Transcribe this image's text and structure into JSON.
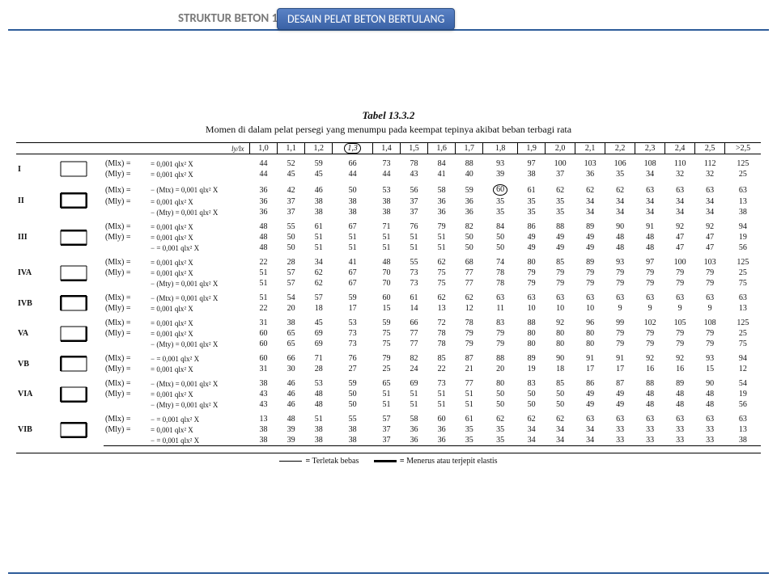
{
  "header": {
    "brand": "STRUKTUR BETON 1",
    "ribbon": "DESAIN PELAT BETON BERTULANG"
  },
  "table": {
    "title": "Tabel 13.3.2",
    "subtitle": "Momen di dalam pelat persegi yang menumpu pada keempat tepinya akibat beban terbagi rata",
    "corner": "ly/lx",
    "ratios": [
      "1,0",
      "1,1",
      "1,2",
      "1,3",
      "1,4",
      "1,5",
      "1,6",
      "1,7",
      "1,8",
      "1,9",
      "2,0",
      "2,1",
      "2,2",
      "2,3",
      "2,4",
      "2,5",
      ">2,5"
    ],
    "highlight_col": 3,
    "formula": "0,001 qlx² X",
    "cases": [
      {
        "id": "I",
        "diag": "I",
        "rows": [
          {
            "m": "(Mlx)",
            "v": [
              "44",
              "52",
              "59",
              "66",
              "73",
              "78",
              "84",
              "88",
              "93",
              "97",
              "100",
              "103",
              "106",
              "108",
              "110",
              "112",
              "125"
            ]
          },
          {
            "m": "(Mly)",
            "v": [
              "44",
              "45",
              "45",
              "44",
              "44",
              "43",
              "41",
              "40",
              "39",
              "38",
              "37",
              "36",
              "35",
              "34",
              "32",
              "32",
              "25"
            ]
          }
        ]
      },
      {
        "id": "II",
        "diag": "II",
        "rows": [
          {
            "m": "(Mlx)",
            "pre": "−  (Mtx)",
            "v": [
              "36",
              "42",
              "46",
              "50",
              "53",
              "56",
              "58",
              "59",
              "60",
              "61",
              "62",
              "62",
              "62",
              "63",
              "63",
              "63",
              "63"
            ],
            "circ": 8
          },
          {
            "m": "(Mly)",
            "v": [
              "36",
              "37",
              "38",
              "38",
              "38",
              "37",
              "36",
              "36",
              "35",
              "35",
              "35",
              "34",
              "34",
              "34",
              "34",
              "34",
              "13"
            ]
          },
          {
            "m": "",
            "pre": "−  (Mty)",
            "v": [
              "36",
              "37",
              "38",
              "38",
              "38",
              "37",
              "36",
              "36",
              "35",
              "35",
              "35",
              "34",
              "34",
              "34",
              "34",
              "34",
              "38"
            ]
          }
        ]
      },
      {
        "id": "III",
        "diag": "III",
        "rows": [
          {
            "m": "(Mlx)",
            "pre": "",
            "v": [
              "48",
              "55",
              "61",
              "67",
              "71",
              "76",
              "79",
              "82",
              "84",
              "86",
              "88",
              "89",
              "90",
              "91",
              "92",
              "92",
              "94"
            ]
          },
          {
            "m": "(Mly)",
            "v": [
              "48",
              "50",
              "51",
              "51",
              "51",
              "51",
              "51",
              "50",
              "50",
              "49",
              "49",
              "49",
              "48",
              "48",
              "47",
              "47",
              "19"
            ]
          },
          {
            "m": "",
            "pre": "−",
            "v": [
              "48",
              "50",
              "51",
              "51",
              "51",
              "51",
              "51",
              "50",
              "50",
              "49",
              "49",
              "49",
              "48",
              "48",
              "47",
              "47",
              "56"
            ]
          }
        ]
      },
      {
        "id": "IVA",
        "diag": "IVA",
        "rows": [
          {
            "m": "(Mlx)",
            "v": [
              "22",
              "28",
              "34",
              "41",
              "48",
              "55",
              "62",
              "68",
              "74",
              "80",
              "85",
              "89",
              "93",
              "97",
              "100",
              "103",
              "125"
            ]
          },
          {
            "m": "(Mly)",
            "v": [
              "51",
              "57",
              "62",
              "67",
              "70",
              "73",
              "75",
              "77",
              "78",
              "79",
              "79",
              "79",
              "79",
              "79",
              "79",
              "79",
              "25"
            ]
          },
          {
            "m": "",
            "pre": "−  (Mty)",
            "v": [
              "51",
              "57",
              "62",
              "67",
              "70",
              "73",
              "75",
              "77",
              "78",
              "79",
              "79",
              "79",
              "79",
              "79",
              "79",
              "79",
              "75"
            ]
          }
        ]
      },
      {
        "id": "IVB",
        "diag": "IVB",
        "rows": [
          {
            "m": "(Mlx)",
            "pre": "−  (Mtx)",
            "v": [
              "51",
              "54",
              "57",
              "59",
              "60",
              "61",
              "62",
              "62",
              "63",
              "63",
              "63",
              "63",
              "63",
              "63",
              "63",
              "63",
              "63"
            ]
          },
          {
            "m": "(Mly)",
            "v": [
              "22",
              "20",
              "18",
              "17",
              "15",
              "14",
              "13",
              "12",
              "11",
              "10",
              "10",
              "10",
              "9",
              "9",
              "9",
              "9",
              "13"
            ]
          }
        ]
      },
      {
        "id": "VA",
        "diag": "VA",
        "rows": [
          {
            "m": "(Mlx)",
            "v": [
              "31",
              "38",
              "45",
              "53",
              "59",
              "66",
              "72",
              "78",
              "83",
              "88",
              "92",
              "96",
              "99",
              "102",
              "105",
              "108",
              "125"
            ]
          },
          {
            "m": "(Mly)",
            "v": [
              "60",
              "65",
              "69",
              "73",
              "75",
              "77",
              "78",
              "79",
              "79",
              "80",
              "80",
              "80",
              "79",
              "79",
              "79",
              "79",
              "25"
            ]
          },
          {
            "m": "",
            "pre": "−  (Mty)",
            "v": [
              "60",
              "65",
              "69",
              "73",
              "75",
              "77",
              "78",
              "79",
              "79",
              "80",
              "80",
              "80",
              "79",
              "79",
              "79",
              "79",
              "75"
            ]
          }
        ]
      },
      {
        "id": "VB",
        "diag": "VB",
        "rows": [
          {
            "m": "(Mlx)",
            "pre": "−",
            "v": [
              "60",
              "66",
              "71",
              "76",
              "79",
              "82",
              "85",
              "87",
              "88",
              "89",
              "90",
              "91",
              "91",
              "92",
              "92",
              "93",
              "94"
            ]
          },
          {
            "m": "(Mly)",
            "v": [
              "31",
              "30",
              "28",
              "27",
              "25",
              "24",
              "22",
              "21",
              "20",
              "19",
              "18",
              "17",
              "17",
              "16",
              "16",
              "15",
              "12"
            ]
          }
        ]
      },
      {
        "id": "VIA",
        "diag": "VIA",
        "rows": [
          {
            "m": "(Mlx)",
            "pre": "−  (Mtx)",
            "v": [
              "38",
              "46",
              "53",
              "59",
              "65",
              "69",
              "73",
              "77",
              "80",
              "83",
              "85",
              "86",
              "87",
              "88",
              "89",
              "90",
              "54"
            ]
          },
          {
            "m": "(Mly)",
            "v": [
              "43",
              "46",
              "48",
              "50",
              "51",
              "51",
              "51",
              "51",
              "50",
              "50",
              "50",
              "49",
              "49",
              "48",
              "48",
              "48",
              "19"
            ]
          },
          {
            "m": "",
            "pre": "−  (Mty)",
            "v": [
              "43",
              "46",
              "48",
              "50",
              "51",
              "51",
              "51",
              "51",
              "50",
              "50",
              "50",
              "49",
              "49",
              "48",
              "48",
              "48",
              "56"
            ]
          }
        ]
      },
      {
        "id": "VIB",
        "diag": "VIB",
        "rows": [
          {
            "m": "(Mlx)",
            "pre": "−",
            "v": [
              "13",
              "48",
              "51",
              "55",
              "57",
              "58",
              "60",
              "61",
              "62",
              "62",
              "62",
              "63",
              "63",
              "63",
              "63",
              "63",
              "63"
            ]
          },
          {
            "m": "(Mly)",
            "v": [
              "38",
              "39",
              "38",
              "38",
              "37",
              "36",
              "36",
              "35",
              "35",
              "34",
              "34",
              "34",
              "33",
              "33",
              "33",
              "33",
              "13"
            ]
          },
          {
            "m": "",
            "pre": "−",
            "v": [
              "38",
              "39",
              "38",
              "38",
              "37",
              "36",
              "36",
              "35",
              "35",
              "34",
              "34",
              "34",
              "33",
              "33",
              "33",
              "33",
              "38"
            ]
          }
        ]
      }
    ],
    "legend": {
      "a": "Terletak bebas",
      "b": "Menerus atau terjepit elastis"
    }
  },
  "colors": {
    "accent": "#2e5c9a",
    "ribbon_top": "#5a82c5",
    "ribbon_bot": "#3a62a6",
    "text": "#111111"
  }
}
